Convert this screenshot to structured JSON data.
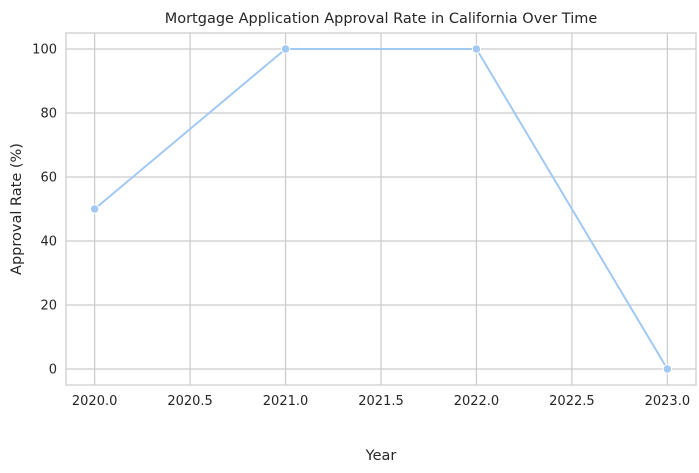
{
  "chart_data": {
    "type": "line",
    "title": "Mortgage Application Approval Rate in California Over Time",
    "xlabel": "Year",
    "ylabel": "Approval Rate (%)",
    "x": [
      2020.0,
      2021.0,
      2022.0,
      2023.0
    ],
    "series": [
      {
        "values": [
          50,
          100,
          100,
          0
        ]
      }
    ],
    "xlim": [
      2019.85,
      2023.15
    ],
    "ylim": [
      -5,
      105
    ],
    "x_ticks": [
      "2020.0",
      "2020.5",
      "2021.0",
      "2021.5",
      "2022.0",
      "2022.5",
      "2023.0"
    ],
    "y_ticks": [
      "0",
      "20",
      "40",
      "60",
      "80",
      "100"
    ],
    "grid": true,
    "line_color": "#a1c9f4",
    "grid_color": "#cccccc",
    "text_color": "#262626"
  }
}
